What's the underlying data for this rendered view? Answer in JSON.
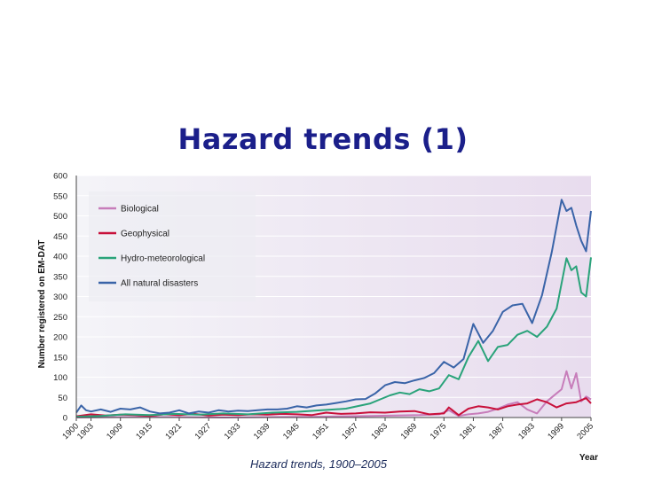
{
  "slide": {
    "title": "Hazard trends (1)",
    "caption": "Hazard trends, 1900–2005"
  },
  "colors": {
    "title": "#1b1f8a",
    "biological": "#c77dba",
    "geophysical": "#c8103a",
    "hydro": "#2aa37a",
    "all": "#3a64a8"
  },
  "chart_data": {
    "type": "line",
    "title": "",
    "xlabel": "Year",
    "ylabel": "Number registered on EM-DAT",
    "xlim": [
      1900,
      2005
    ],
    "ylim": [
      0,
      600
    ],
    "xticks": [
      "1900",
      "1903",
      "1909",
      "1915",
      "1921",
      "1927",
      "1933",
      "1939",
      "1945",
      "1951",
      "1957",
      "1963",
      "1969",
      "1975",
      "1981",
      "1987",
      "1993",
      "1999",
      "2005"
    ],
    "yticks": [
      "0",
      "50",
      "100",
      "150",
      "200",
      "250",
      "300",
      "350",
      "400",
      "450",
      "500",
      "550",
      "600"
    ],
    "series": [
      {
        "name": "Biological",
        "color": "#c77dba",
        "x": [
          1900,
          1910,
          1920,
          1930,
          1940,
          1950,
          1960,
          1970,
          1974,
          1976,
          1978,
          1980,
          1982,
          1984,
          1986,
          1988,
          1990,
          1992,
          1994,
          1996,
          1998,
          1999,
          2000,
          2001,
          2002,
          2003,
          2004,
          2005
        ],
        "y": [
          0,
          1,
          1,
          0,
          1,
          2,
          4,
          6,
          8,
          18,
          4,
          8,
          10,
          14,
          22,
          32,
          38,
          20,
          10,
          40,
          60,
          70,
          115,
          72,
          110,
          40,
          52,
          45
        ]
      },
      {
        "name": "Geophysical",
        "color": "#c8103a",
        "x": [
          1900,
          1903,
          1906,
          1909,
          1912,
          1915,
          1918,
          1921,
          1924,
          1927,
          1930,
          1933,
          1936,
          1939,
          1942,
          1945,
          1948,
          1951,
          1954,
          1957,
          1960,
          1963,
          1966,
          1969,
          1972,
          1975,
          1976,
          1978,
          1980,
          1982,
          1984,
          1986,
          1988,
          1990,
          1992,
          1994,
          1996,
          1998,
          2000,
          2002,
          2004,
          2005
        ],
        "y": [
          3,
          8,
          5,
          7,
          6,
          4,
          8,
          6,
          9,
          5,
          7,
          6,
          8,
          7,
          9,
          8,
          6,
          12,
          9,
          10,
          13,
          12,
          15,
          16,
          8,
          10,
          25,
          6,
          22,
          28,
          25,
          20,
          28,
          32,
          35,
          45,
          38,
          25,
          35,
          38,
          48,
          35
        ]
      },
      {
        "name": "Hydro-meteorological",
        "color": "#2aa37a",
        "x": [
          1900,
          1905,
          1910,
          1915,
          1920,
          1925,
          1930,
          1935,
          1940,
          1945,
          1950,
          1955,
          1960,
          1962,
          1964,
          1966,
          1968,
          1970,
          1972,
          1974,
          1976,
          1978,
          1980,
          1982,
          1984,
          1986,
          1988,
          1990,
          1992,
          1994,
          1996,
          1998,
          2000,
          2001,
          2002,
          2003,
          2004,
          2005
        ],
        "y": [
          2,
          4,
          8,
          6,
          9,
          7,
          10,
          8,
          12,
          14,
          18,
          22,
          35,
          45,
          55,
          62,
          58,
          70,
          65,
          72,
          105,
          95,
          150,
          190,
          140,
          175,
          180,
          205,
          215,
          200,
          225,
          270,
          395,
          365,
          375,
          310,
          300,
          397
        ]
      },
      {
        "name": "All natural disasters",
        "color": "#3a64a8",
        "x": [
          1900,
          1901,
          1902,
          1903,
          1905,
          1907,
          1909,
          1911,
          1913,
          1915,
          1917,
          1919,
          1921,
          1923,
          1925,
          1927,
          1929,
          1931,
          1933,
          1935,
          1937,
          1939,
          1941,
          1943,
          1945,
          1947,
          1949,
          1951,
          1953,
          1955,
          1957,
          1959,
          1961,
          1963,
          1965,
          1967,
          1969,
          1971,
          1973,
          1975,
          1977,
          1979,
          1981,
          1983,
          1985,
          1987,
          1989,
          1991,
          1993,
          1995,
          1997,
          1999,
          2000,
          2001,
          2002,
          2003,
          2004,
          2005
        ],
        "y": [
          12,
          30,
          18,
          15,
          20,
          14,
          22,
          20,
          25,
          15,
          10,
          12,
          18,
          10,
          15,
          12,
          18,
          15,
          17,
          16,
          18,
          20,
          20,
          22,
          28,
          25,
          30,
          32,
          36,
          40,
          45,
          46,
          60,
          80,
          88,
          85,
          92,
          98,
          110,
          138,
          124,
          145,
          232,
          185,
          215,
          262,
          278,
          282,
          234,
          303,
          410,
          540,
          512,
          520,
          476,
          438,
          412,
          512
        ]
      }
    ]
  }
}
